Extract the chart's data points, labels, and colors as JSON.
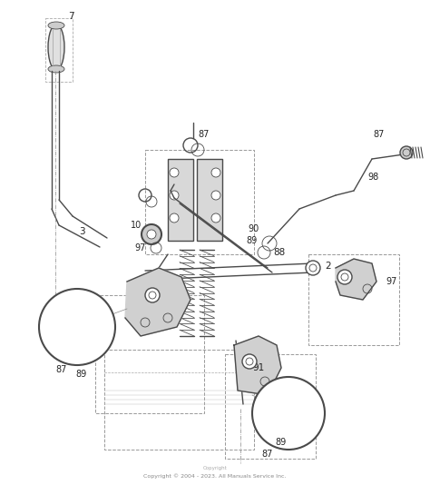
{
  "bg_color": "#ffffff",
  "line_color": "#4a4a4a",
  "footnote": "Copyright © 2004 - 2023. All Manuals Service Inc.",
  "lw_main": 1.0,
  "lw_thin": 0.6,
  "lw_thick": 1.5
}
